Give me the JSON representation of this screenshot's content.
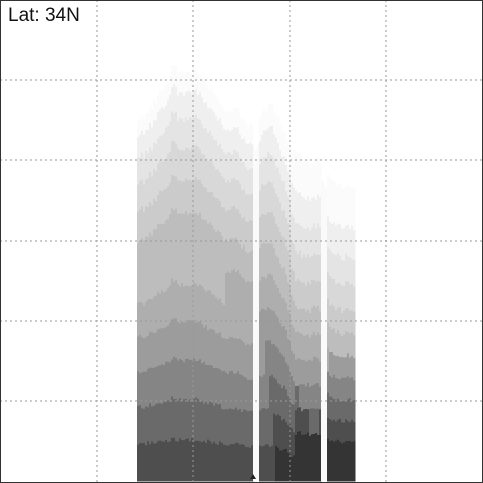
{
  "label": "Lat: 34N",
  "chart_data": {
    "type": "heatmap",
    "title": "",
    "xlabel": "",
    "ylabel": "",
    "grid": true,
    "colors": {
      "background": "#ffffff",
      "grid": "#999999",
      "frame": "#333333",
      "shades": [
        "#fbfbfb",
        "#efefef",
        "#e4e4e4",
        "#d8d8d8",
        "#cbcbcb",
        "#bdbdbd",
        "#aeaeae",
        "#9c9c9c",
        "#858585",
        "#6a6a6a",
        "#4e4e4e",
        "#343434"
      ]
    }
  }
}
